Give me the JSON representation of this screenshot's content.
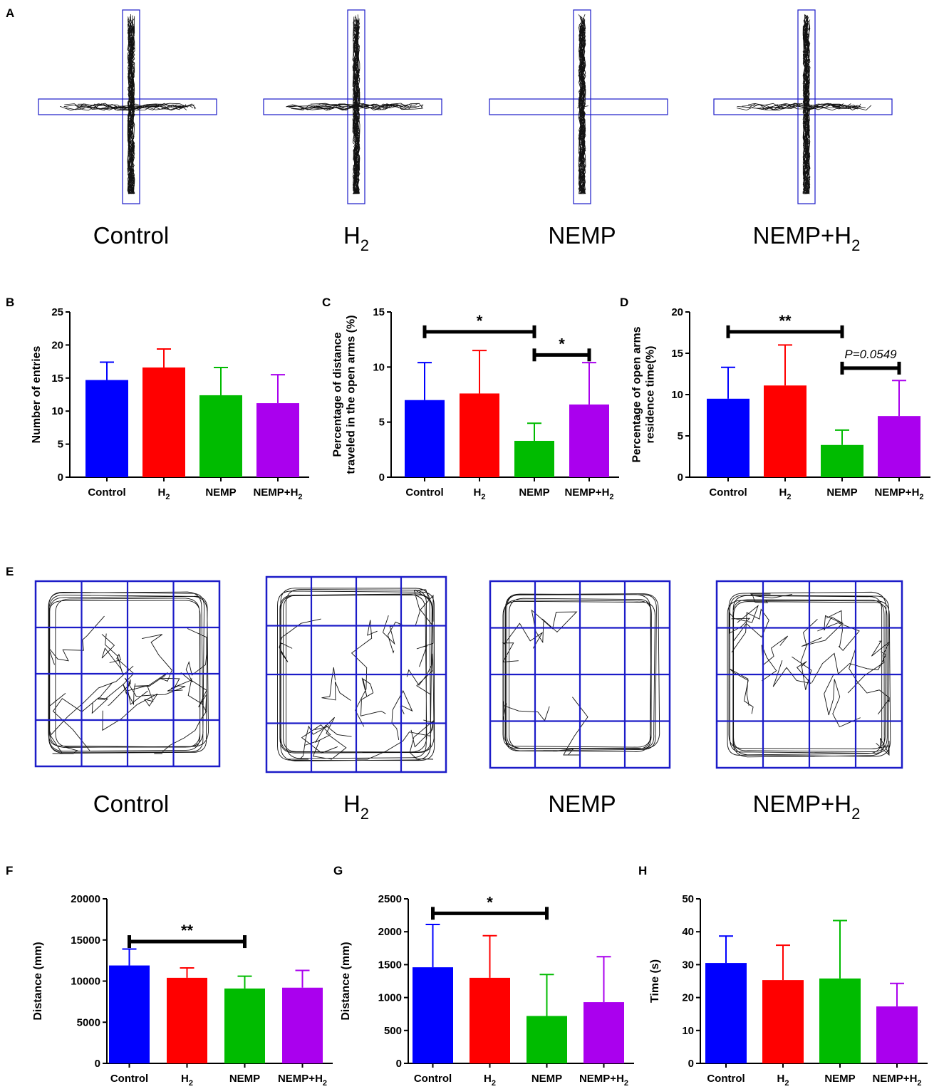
{
  "groups": [
    {
      "label": "Control",
      "sub": ""
    },
    {
      "label": "H",
      "sub": "2"
    },
    {
      "label": "NEMP",
      "sub": ""
    },
    {
      "label": "NEMP+H",
      "sub": "2"
    }
  ],
  "panel_letters": {
    "A": "A",
    "B": "B",
    "C": "C",
    "D": "D",
    "E": "E",
    "F": "F",
    "G": "G",
    "H": "H"
  },
  "colors": {
    "Control": "#0000ff",
    "H2": "#ff0000",
    "NEMP": "#00bb00",
    "NEMP+H2": "#aa00ee",
    "maze_box": "#1c1cc8",
    "grid": "#1c1cc8"
  },
  "chart_data": [
    {
      "id": "B",
      "type": "bar",
      "categories": [
        "Control",
        "H2",
        "NEMP",
        "NEMP+H2"
      ],
      "values": [
        14.7,
        16.6,
        12.4,
        11.2
      ],
      "errors": [
        2.7,
        2.8,
        4.2,
        4.3
      ],
      "ylabel": [
        "Number of entries"
      ],
      "ylim": [
        0,
        25
      ],
      "yticks": [
        0,
        5,
        10,
        15,
        20,
        25
      ],
      "significance": []
    },
    {
      "id": "C",
      "type": "bar",
      "categories": [
        "Control",
        "H2",
        "NEMP",
        "NEMP+H2"
      ],
      "values": [
        7.0,
        7.6,
        3.3,
        6.6
      ],
      "errors": [
        3.4,
        3.9,
        1.6,
        3.8
      ],
      "ylabel": [
        "Percentage of distance",
        "traveled in the open arms (%)"
      ],
      "ylim": [
        0,
        15
      ],
      "yticks": [
        0,
        5,
        10,
        15
      ],
      "significance": [
        {
          "from": 0,
          "to": 2,
          "label": "*",
          "level": 13.2
        },
        {
          "from": 2,
          "to": 3,
          "label": "*",
          "level": 11.1
        }
      ]
    },
    {
      "id": "D",
      "type": "bar",
      "categories": [
        "Control",
        "H2",
        "NEMP",
        "NEMP+H2"
      ],
      "values": [
        9.5,
        11.1,
        3.9,
        7.4
      ],
      "errors": [
        3.8,
        4.9,
        1.8,
        4.3
      ],
      "ylabel": [
        "Percentage of open arms",
        "residence time(%)"
      ],
      "ylim": [
        0,
        20
      ],
      "yticks": [
        0,
        5,
        10,
        15,
        20
      ],
      "significance": [
        {
          "from": 0,
          "to": 2,
          "label": "**",
          "level": 17.6
        },
        {
          "from": 2,
          "to": 3,
          "label": "P=0.0549",
          "level": 13.2,
          "italic": true
        }
      ]
    },
    {
      "id": "F",
      "type": "bar",
      "categories": [
        "Control",
        "H2",
        "NEMP",
        "NEMP+H2"
      ],
      "values": [
        11900,
        10400,
        9100,
        9200
      ],
      "errors": [
        2000,
        1200,
        1500,
        2100
      ],
      "ylabel": [
        "Distance (mm)"
      ],
      "ylim": [
        0,
        20000
      ],
      "yticks": [
        0,
        5000,
        10000,
        15000,
        20000
      ],
      "significance": [
        {
          "from": 0,
          "to": 2,
          "label": "**",
          "level": 14800
        }
      ]
    },
    {
      "id": "G",
      "type": "bar",
      "categories": [
        "Control",
        "H2",
        "NEMP",
        "NEMP+H2"
      ],
      "values": [
        1460,
        1300,
        720,
        930
      ],
      "errors": [
        650,
        640,
        630,
        690
      ],
      "ylabel": [
        "Distance (mm)"
      ],
      "ylim": [
        0,
        2500
      ],
      "yticks": [
        0,
        500,
        1000,
        1500,
        2000,
        2500
      ],
      "significance": [
        {
          "from": 0,
          "to": 2,
          "label": "*",
          "level": 2280
        }
      ]
    },
    {
      "id": "H",
      "type": "bar",
      "categories": [
        "Control",
        "H2",
        "NEMP",
        "NEMP+H2"
      ],
      "values": [
        30.5,
        25.3,
        25.8,
        17.3
      ],
      "errors": [
        8.2,
        10.6,
        17.6,
        7.0
      ],
      "ylabel": [
        "Time (s)"
      ],
      "ylim": [
        0,
        50
      ],
      "yticks": [
        0,
        10,
        20,
        30,
        40,
        50
      ],
      "significance": []
    }
  ]
}
